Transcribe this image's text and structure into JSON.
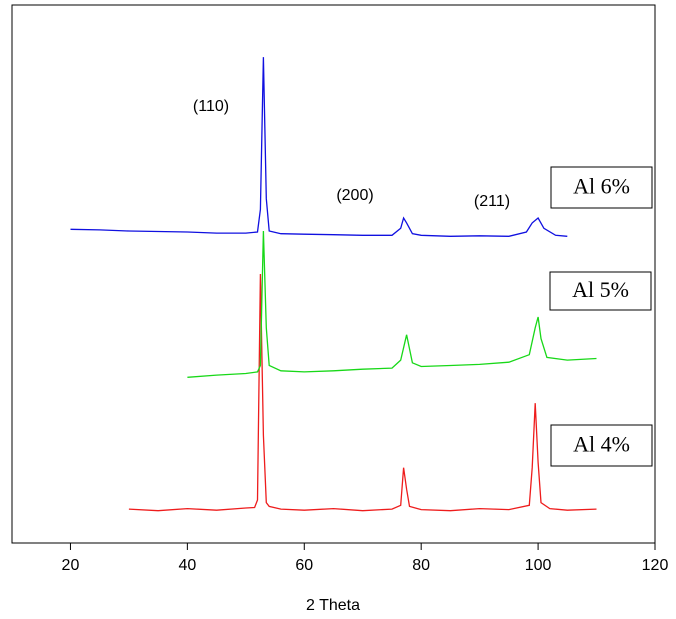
{
  "chart_data": {
    "type": "line",
    "x_label": "2 Theta",
    "xlim": [
      10,
      120
    ],
    "xticks": [
      20,
      40,
      60,
      80,
      100,
      120
    ],
    "ylim": [
      0,
      100
    ],
    "annotations": [
      "(110)",
      "(200)",
      "(211)"
    ],
    "series": [
      {
        "name": "Al 6%",
        "color": "#1010e0",
        "x": [
          20,
          25,
          30,
          35,
          40,
          45,
          50,
          52,
          52.5,
          53,
          53.5,
          54,
          56,
          60,
          65,
          70,
          75,
          76.5,
          77,
          77.5,
          78.5,
          80,
          85,
          90,
          95,
          98,
          99,
          100,
          101,
          103,
          105
        ],
        "values": [
          58.3,
          58.2,
          58,
          57.9,
          57.8,
          57.6,
          57.6,
          57.8,
          62,
          90.3,
          64,
          58,
          57.5,
          57.4,
          57.3,
          57.2,
          57.2,
          58.5,
          60.4,
          59.5,
          57.5,
          57.2,
          57,
          57.1,
          57,
          57.8,
          59.5,
          60.4,
          58.5,
          57.2,
          57
        ]
      },
      {
        "name": "Al 5%",
        "color": "#18d818",
        "x": [
          40,
          45,
          50,
          52,
          52.5,
          53,
          53.5,
          54,
          56,
          60,
          65,
          70,
          75,
          76.5,
          77.5,
          78.5,
          80,
          85,
          90,
          95,
          98.5,
          99.5,
          100,
          100.5,
          101.5,
          105,
          110
        ],
        "values": [
          30.8,
          31.2,
          31.5,
          31.8,
          33,
          58,
          40,
          33,
          32,
          31.8,
          32,
          32.3,
          32.5,
          34,
          38.7,
          33.5,
          32.8,
          33,
          33.2,
          33.6,
          35,
          40,
          42,
          38,
          34.5,
          34,
          34.3
        ]
      },
      {
        "name": "Al 4%",
        "color": "#ee1c1c",
        "x": [
          30,
          35,
          40,
          45,
          50,
          51.5,
          52,
          52.5,
          53,
          53.5,
          54,
          56,
          60,
          65,
          70,
          75,
          76.5,
          77,
          77.5,
          78,
          80,
          85,
          90,
          95,
          98.5,
          99,
          99.5,
          100,
          100.5,
          102,
          105,
          110
        ],
        "values": [
          6.3,
          6.0,
          6.4,
          6.1,
          6.5,
          6.6,
          8,
          50,
          20,
          7.5,
          6.8,
          6.3,
          6.1,
          6.4,
          6.0,
          6.3,
          7,
          14,
          10,
          6.8,
          6.2,
          6.0,
          6.4,
          6.2,
          7,
          14,
          26,
          15,
          7.5,
          6.4,
          6.1,
          6.3
        ]
      }
    ]
  }
}
